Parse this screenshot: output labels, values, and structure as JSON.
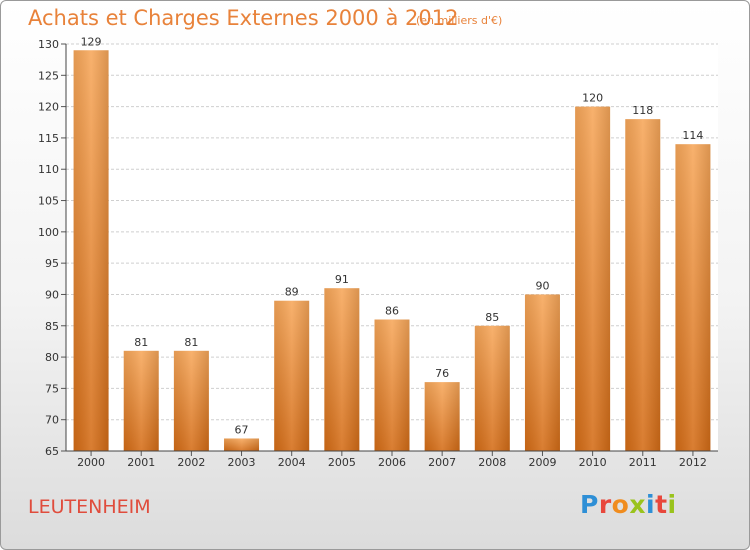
{
  "header": {
    "title": "Achats et Charges Externes 2000 à 2012",
    "unit": "(en milliers d'€)"
  },
  "footer": {
    "commune": "LEUTENHEIM",
    "brand": "Proxiti",
    "brand_colors": [
      "#2e8fd6",
      "#e8473c",
      "#f08c1e",
      "#9ac31c",
      "#2e8fd6",
      "#e8473c",
      "#9ac31c"
    ]
  },
  "chart_data": {
    "type": "bar",
    "categories": [
      "2000",
      "2001",
      "2002",
      "2003",
      "2004",
      "2005",
      "2006",
      "2007",
      "2008",
      "2009",
      "2010",
      "2011",
      "2012"
    ],
    "values": [
      129,
      81,
      81,
      67,
      89,
      91,
      86,
      76,
      85,
      90,
      120,
      118,
      114
    ],
    "ylim": [
      65,
      130
    ],
    "yticks": [
      65,
      70,
      75,
      80,
      85,
      90,
      95,
      100,
      105,
      110,
      115,
      120,
      125,
      130
    ],
    "grid": true,
    "bar_color": "#ef8c3a"
  }
}
